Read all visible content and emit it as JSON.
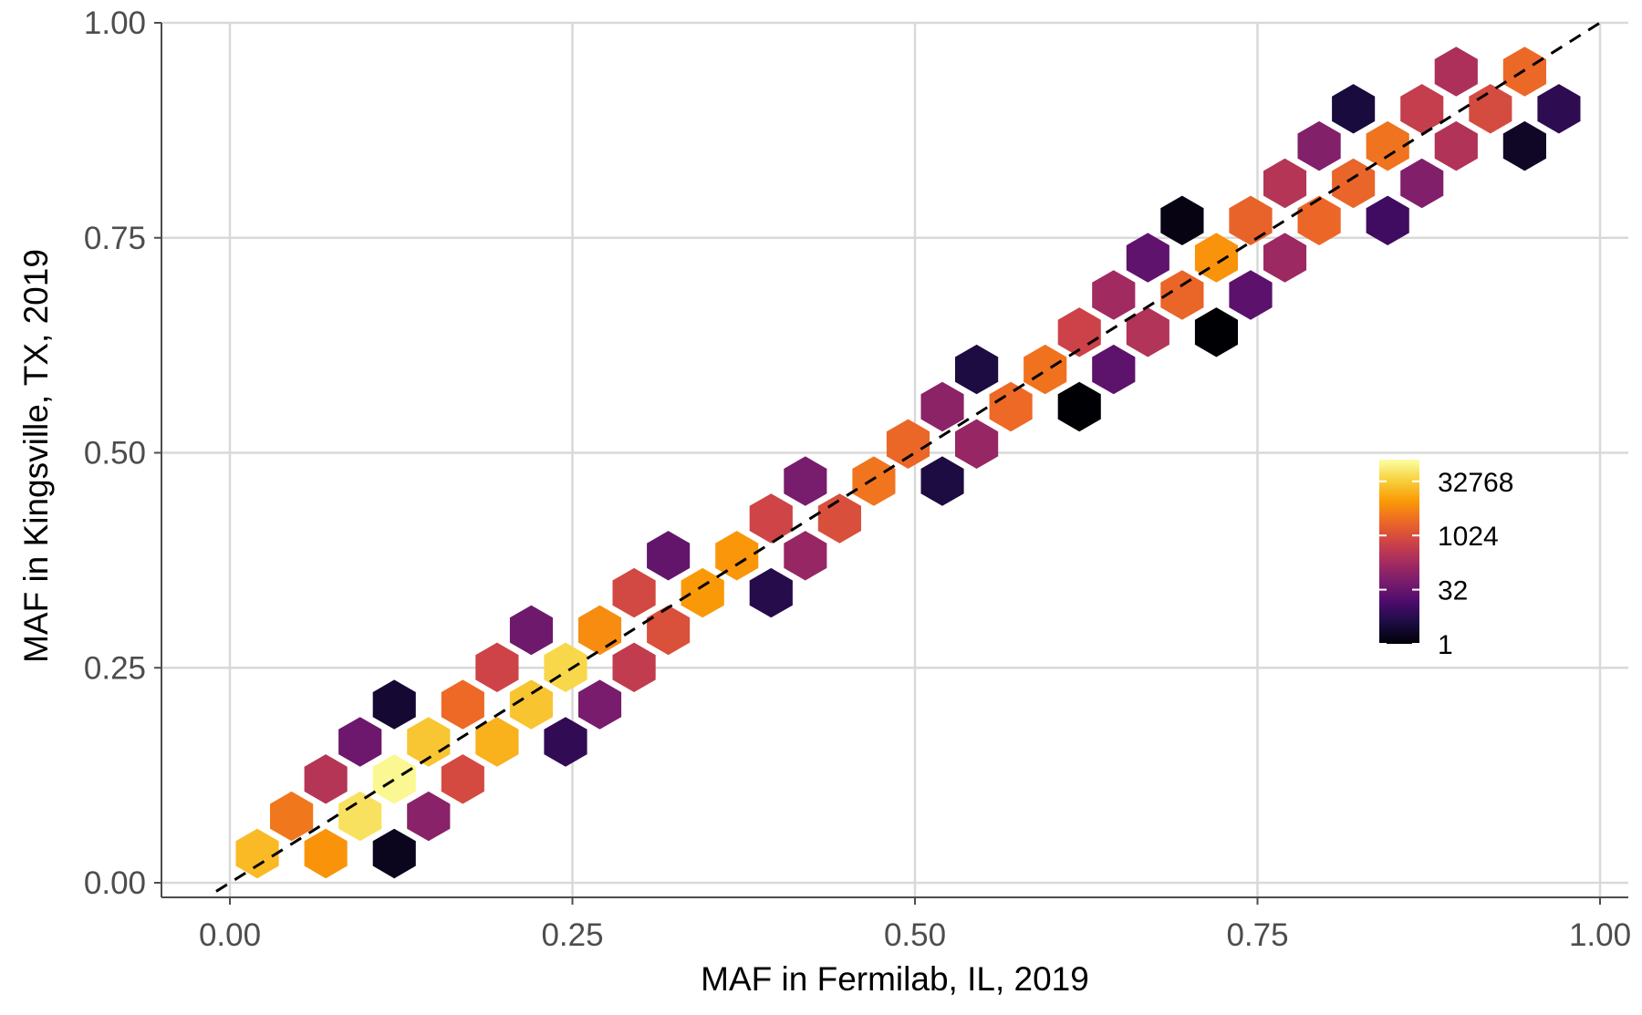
{
  "chart_data": {
    "type": "hexbin",
    "xlabel": "MAF in Fermilab, IL, 2019",
    "ylabel": "MAF in Kingsville, TX, 2019",
    "xlim": [
      -0.05,
      1.02
    ],
    "ylim": [
      -0.015,
      1.0
    ],
    "xticks": [
      "0.00",
      "0.25",
      "0.50",
      "0.75",
      "1.00"
    ],
    "yticks": [
      "0.00",
      "0.25",
      "0.50",
      "0.75",
      "1.00"
    ],
    "xtick_values": [
      0,
      0.25,
      0.5,
      0.75,
      1.0
    ],
    "ytick_values": [
      0,
      0.25,
      0.5,
      0.75,
      1.0
    ],
    "grid": true,
    "reference_line": {
      "slope": 1,
      "intercept": 0,
      "style": "dashed",
      "color": "#000000"
    },
    "colorscale": {
      "name": "inferno",
      "scale": "log2",
      "legend_position": "right",
      "breaks": [
        "32768",
        "1024",
        "32",
        "1"
      ],
      "break_values": [
        32768,
        1024,
        32,
        1
      ],
      "range": [
        1,
        131072
      ],
      "stops": [
        "#000004",
        "#1b0c41",
        "#4a0c6b",
        "#781c6d",
        "#a52c60",
        "#cf4446",
        "#ed6925",
        "#fb9b06",
        "#f7d13d",
        "#fcffa4"
      ]
    },
    "hex_bins": "counts per bin follow the colour scale: highest density (~131072) along y = x near x 0.05–0.2, decreasing to 1 at the edges of the diagonal band; band spans x 0.00–0.98"
  }
}
